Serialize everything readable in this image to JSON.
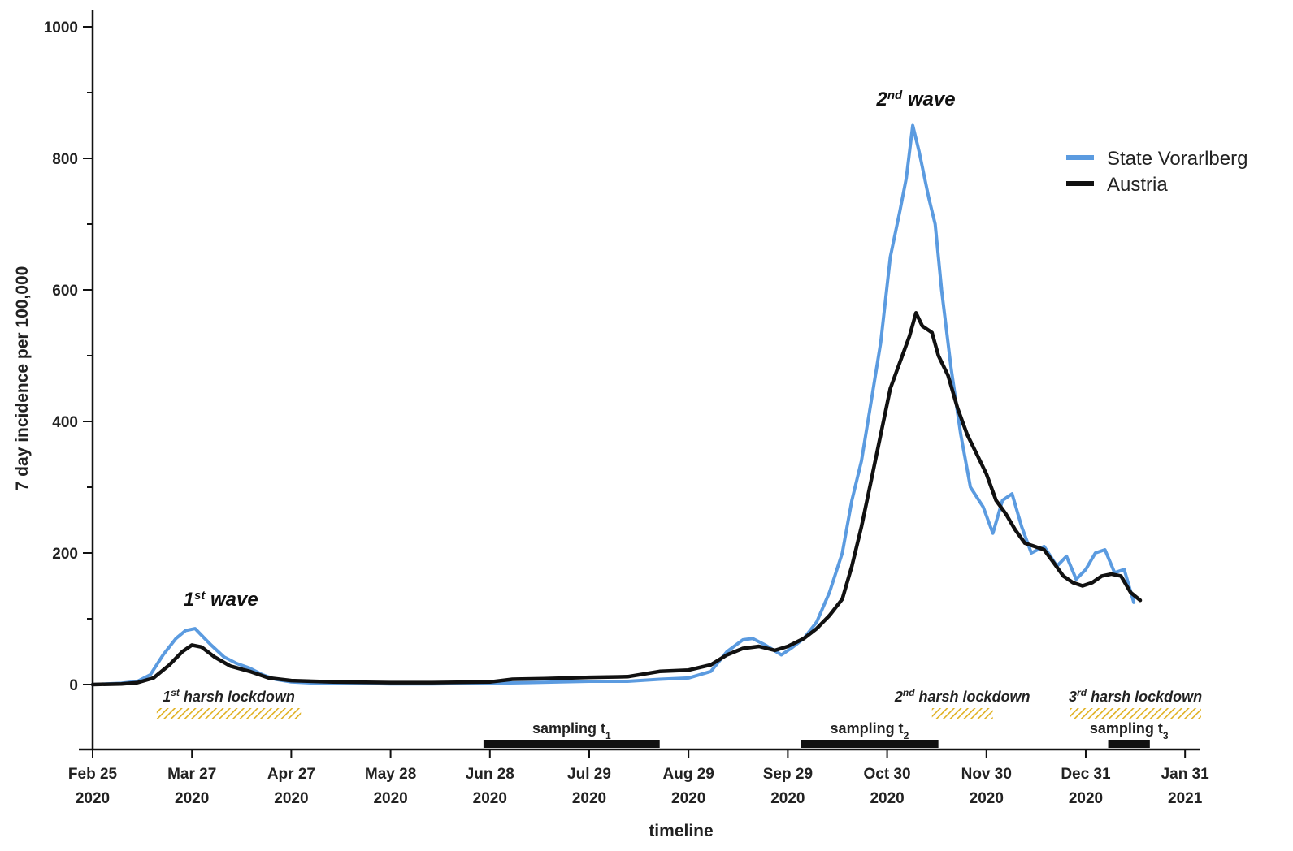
{
  "chart_data": {
    "type": "line",
    "xlabel": "timeline",
    "ylabel": "7 day incidence per 100,000",
    "ylim": [
      -100,
      1000
    ],
    "yticks": [
      0,
      200,
      400,
      600,
      800,
      1000
    ],
    "xlim": [
      "2020-02-25",
      "2021-02-03"
    ],
    "xticks": [
      {
        "date": "2020-02-25",
        "label": "Feb 25",
        "year": "2020"
      },
      {
        "date": "2020-03-27",
        "label": "Mar 27",
        "year": "2020"
      },
      {
        "date": "2020-04-27",
        "label": "Apr 27",
        "year": "2020"
      },
      {
        "date": "2020-05-28",
        "label": "May 28",
        "year": "2020"
      },
      {
        "date": "2020-06-28",
        "label": "Jun 28",
        "year": "2020"
      },
      {
        "date": "2020-07-29",
        "label": "Jul 29",
        "year": "2020"
      },
      {
        "date": "2020-08-29",
        "label": "Aug 29",
        "year": "2020"
      },
      {
        "date": "2020-09-29",
        "label": "Sep 29",
        "year": "2020"
      },
      {
        "date": "2020-10-30",
        "label": "Oct 30",
        "year": "2020"
      },
      {
        "date": "2020-11-30",
        "label": "Nov 30",
        "year": "2020"
      },
      {
        "date": "2020-12-31",
        "label": "Dec 31",
        "year": "2020"
      },
      {
        "date": "2021-01-31",
        "label": "Jan 31",
        "year": "2021"
      }
    ],
    "legend_position": "top-right",
    "series": [
      {
        "name": "State Vorarlberg",
        "color": "#5b9be0",
        "points": [
          [
            "2020-02-25",
            0
          ],
          [
            "2020-03-05",
            2
          ],
          [
            "2020-03-10",
            5
          ],
          [
            "2020-03-14",
            15
          ],
          [
            "2020-03-18",
            45
          ],
          [
            "2020-03-22",
            70
          ],
          [
            "2020-03-25",
            82
          ],
          [
            "2020-03-28",
            85
          ],
          [
            "2020-03-30",
            75
          ],
          [
            "2020-04-02",
            60
          ],
          [
            "2020-04-06",
            42
          ],
          [
            "2020-04-10",
            32
          ],
          [
            "2020-04-14",
            25
          ],
          [
            "2020-04-18",
            15
          ],
          [
            "2020-04-22",
            8
          ],
          [
            "2020-04-27",
            4
          ],
          [
            "2020-05-05",
            2
          ],
          [
            "2020-05-15",
            2
          ],
          [
            "2020-05-28",
            1
          ],
          [
            "2020-06-10",
            1
          ],
          [
            "2020-06-28",
            2
          ],
          [
            "2020-07-10",
            3
          ],
          [
            "2020-07-20",
            4
          ],
          [
            "2020-07-29",
            5
          ],
          [
            "2020-08-10",
            5
          ],
          [
            "2020-08-20",
            8
          ],
          [
            "2020-08-29",
            10
          ],
          [
            "2020-09-05",
            20
          ],
          [
            "2020-09-10",
            50
          ],
          [
            "2020-09-15",
            68
          ],
          [
            "2020-09-18",
            70
          ],
          [
            "2020-09-22",
            60
          ],
          [
            "2020-09-27",
            45
          ],
          [
            "2020-09-30",
            55
          ],
          [
            "2020-10-04",
            70
          ],
          [
            "2020-10-08",
            95
          ],
          [
            "2020-10-12",
            140
          ],
          [
            "2020-10-16",
            200
          ],
          [
            "2020-10-19",
            280
          ],
          [
            "2020-10-22",
            340
          ],
          [
            "2020-10-25",
            430
          ],
          [
            "2020-10-28",
            520
          ],
          [
            "2020-10-31",
            650
          ],
          [
            "2020-11-03",
            720
          ],
          [
            "2020-11-05",
            770
          ],
          [
            "2020-11-07",
            850
          ],
          [
            "2020-11-09",
            810
          ],
          [
            "2020-11-12",
            740
          ],
          [
            "2020-11-14",
            700
          ],
          [
            "2020-11-16",
            600
          ],
          [
            "2020-11-19",
            480
          ],
          [
            "2020-11-22",
            380
          ],
          [
            "2020-11-25",
            300
          ],
          [
            "2020-11-29",
            270
          ],
          [
            "2020-12-02",
            230
          ],
          [
            "2020-12-05",
            280
          ],
          [
            "2020-12-08",
            290
          ],
          [
            "2020-12-11",
            240
          ],
          [
            "2020-12-14",
            200
          ],
          [
            "2020-12-18",
            210
          ],
          [
            "2020-12-22",
            180
          ],
          [
            "2020-12-25",
            195
          ],
          [
            "2020-12-28",
            160
          ],
          [
            "2020-12-31",
            175
          ],
          [
            "2021-01-03",
            200
          ],
          [
            "2021-01-06",
            205
          ],
          [
            "2021-01-09",
            170
          ],
          [
            "2021-01-12",
            175
          ],
          [
            "2021-01-15",
            125
          ]
        ]
      },
      {
        "name": "Austria",
        "color": "#111111",
        "points": [
          [
            "2020-02-25",
            0
          ],
          [
            "2020-03-05",
            1
          ],
          [
            "2020-03-10",
            3
          ],
          [
            "2020-03-15",
            10
          ],
          [
            "2020-03-20",
            30
          ],
          [
            "2020-03-24",
            50
          ],
          [
            "2020-03-27",
            60
          ],
          [
            "2020-03-30",
            57
          ],
          [
            "2020-04-03",
            42
          ],
          [
            "2020-04-08",
            28
          ],
          [
            "2020-04-14",
            20
          ],
          [
            "2020-04-20",
            10
          ],
          [
            "2020-04-27",
            6
          ],
          [
            "2020-05-10",
            4
          ],
          [
            "2020-05-28",
            3
          ],
          [
            "2020-06-10",
            3
          ],
          [
            "2020-06-28",
            4
          ],
          [
            "2020-07-05",
            8
          ],
          [
            "2020-07-15",
            9
          ],
          [
            "2020-07-29",
            11
          ],
          [
            "2020-08-10",
            12
          ],
          [
            "2020-08-20",
            20
          ],
          [
            "2020-08-29",
            22
          ],
          [
            "2020-09-05",
            30
          ],
          [
            "2020-09-10",
            45
          ],
          [
            "2020-09-15",
            55
          ],
          [
            "2020-09-20",
            58
          ],
          [
            "2020-09-25",
            52
          ],
          [
            "2020-09-29",
            58
          ],
          [
            "2020-10-04",
            70
          ],
          [
            "2020-10-08",
            85
          ],
          [
            "2020-10-12",
            105
          ],
          [
            "2020-10-16",
            130
          ],
          [
            "2020-10-19",
            180
          ],
          [
            "2020-10-22",
            240
          ],
          [
            "2020-10-25",
            310
          ],
          [
            "2020-10-28",
            380
          ],
          [
            "2020-10-31",
            450
          ],
          [
            "2020-11-03",
            490
          ],
          [
            "2020-11-06",
            530
          ],
          [
            "2020-11-08",
            565
          ],
          [
            "2020-11-10",
            545
          ],
          [
            "2020-11-13",
            535
          ],
          [
            "2020-11-15",
            500
          ],
          [
            "2020-11-18",
            470
          ],
          [
            "2020-11-21",
            420
          ],
          [
            "2020-11-24",
            380
          ],
          [
            "2020-11-27",
            350
          ],
          [
            "2020-11-30",
            320
          ],
          [
            "2020-12-03",
            280
          ],
          [
            "2020-12-06",
            260
          ],
          [
            "2020-12-09",
            235
          ],
          [
            "2020-12-12",
            215
          ],
          [
            "2020-12-15",
            210
          ],
          [
            "2020-12-18",
            205
          ],
          [
            "2020-12-21",
            185
          ],
          [
            "2020-12-24",
            165
          ],
          [
            "2020-12-27",
            155
          ],
          [
            "2020-12-30",
            150
          ],
          [
            "2021-01-02",
            155
          ],
          [
            "2021-01-05",
            165
          ],
          [
            "2021-01-08",
            168
          ],
          [
            "2021-01-11",
            165
          ],
          [
            "2021-01-14",
            140
          ],
          [
            "2021-01-17",
            128
          ]
        ]
      }
    ],
    "annotations": {
      "waves": [
        {
          "base": "1",
          "sup": "st",
          "rest": " wave",
          "date": "2020-04-05",
          "value": 120
        },
        {
          "base": "2",
          "sup": "nd",
          "rest": " wave",
          "date": "2020-11-08",
          "value": 880
        }
      ],
      "lockdowns": [
        {
          "base": "1",
          "sup": "st",
          "rest": " harsh lockdown",
          "start": "2020-03-16",
          "end": "2020-04-30"
        },
        {
          "base": "2",
          "sup": "nd",
          "rest": " harsh lockdown",
          "start": "2020-11-13",
          "end": "2020-12-02"
        },
        {
          "base": "3",
          "sup": "rd",
          "rest": " harsh lockdown",
          "start": "2020-12-26",
          "end": "2021-02-05"
        }
      ],
      "sampling": [
        {
          "base": "sampling t",
          "sub": "1",
          "start": "2020-06-26",
          "end": "2020-08-20"
        },
        {
          "base": "sampling t",
          "sub": "2",
          "start": "2020-10-03",
          "end": "2020-11-15"
        },
        {
          "base": "sampling t",
          "sub": "3",
          "start": "2021-01-07",
          "end": "2021-01-20"
        }
      ],
      "hatch_color": "#e0b020",
      "bar_color": "#111111"
    }
  }
}
